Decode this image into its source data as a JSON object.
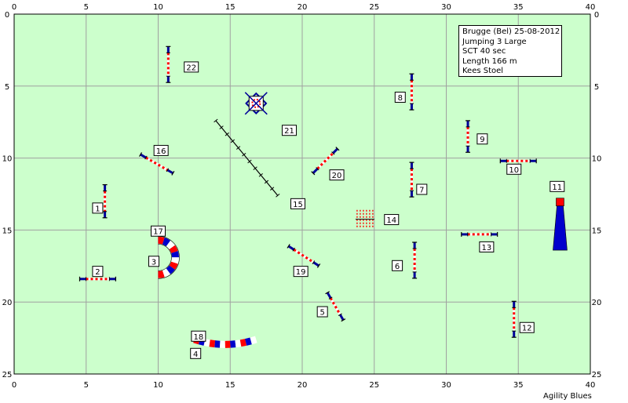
{
  "axes": {
    "x_ticks": [
      "0",
      "5",
      "10",
      "15",
      "20",
      "25",
      "30",
      "35",
      "40"
    ],
    "y_ticks": [
      "0",
      "5",
      "10",
      "15",
      "20",
      "25"
    ],
    "x_range": [
      0,
      40
    ],
    "y_range": [
      0,
      25
    ],
    "grid": true
  },
  "info": {
    "lines": [
      "Brugge (Bel) 25-08-2012",
      "Jumping 3 Large",
      "SCT 40 sec",
      "Length 166 m",
      "Kees Stoel"
    ]
  },
  "credit": "Agility Blues",
  "colors": {
    "field": "#ccffcc",
    "grid": "#a0a0a0",
    "pole_blue": "#000099",
    "accent_red": "#ff0000",
    "tunnel_blue": "#0000cc"
  },
  "labels": [
    {
      "text": "1",
      "x": 5.8,
      "y": 13.5
    },
    {
      "text": "2",
      "x": 5.8,
      "y": 17.9
    },
    {
      "text": "3",
      "x": 9.7,
      "y": 17.2
    },
    {
      "text": "4",
      "x": 12.6,
      "y": 23.6
    },
    {
      "text": "5",
      "x": 21.4,
      "y": 20.7
    },
    {
      "text": "6",
      "x": 26.6,
      "y": 17.5
    },
    {
      "text": "7",
      "x": 28.3,
      "y": 12.2
    },
    {
      "text": "8",
      "x": 26.8,
      "y": 5.8
    },
    {
      "text": "9",
      "x": 32.5,
      "y": 8.7
    },
    {
      "text": "10",
      "x": 34.7,
      "y": 10.8
    },
    {
      "text": "11",
      "x": 37.7,
      "y": 12.0
    },
    {
      "text": "12",
      "x": 35.6,
      "y": 21.8
    },
    {
      "text": "13",
      "x": 32.8,
      "y": 16.2
    },
    {
      "text": "14",
      "x": 26.2,
      "y": 14.3
    },
    {
      "text": "15",
      "x": 19.7,
      "y": 13.2
    },
    {
      "text": "16",
      "x": 10.2,
      "y": 9.5
    },
    {
      "text": "17",
      "x": 10.0,
      "y": 15.1
    },
    {
      "text": "18",
      "x": 12.8,
      "y": 22.4
    },
    {
      "text": "19",
      "x": 19.9,
      "y": 17.9
    },
    {
      "text": "20",
      "x": 22.4,
      "y": 11.2
    },
    {
      "text": "21",
      "x": 19.1,
      "y": 8.1
    },
    {
      "text": "22",
      "x": 12.3,
      "y": 3.7
    }
  ],
  "hurdles": [
    {
      "name": "1",
      "x": 6.3,
      "y": 13.0,
      "length": 2.3,
      "angle": 90
    },
    {
      "name": "2",
      "x": 5.8,
      "y": 18.4,
      "length": 2.5,
      "angle": 0
    },
    {
      "name": "5",
      "x": 22.3,
      "y": 20.3,
      "length": 2.2,
      "angle": 60
    },
    {
      "name": "6",
      "x": 27.8,
      "y": 17.1,
      "length": 2.5,
      "angle": 90
    },
    {
      "name": "7",
      "x": 27.6,
      "y": 11.5,
      "length": 2.4,
      "angle": 90
    },
    {
      "name": "8",
      "x": 27.6,
      "y": 5.4,
      "length": 2.5,
      "angle": 90
    },
    {
      "name": "9",
      "x": 31.5,
      "y": 8.5,
      "length": 2.2,
      "angle": 90
    },
    {
      "name": "10",
      "x": 35.0,
      "y": 10.2,
      "length": 2.5,
      "angle": 0
    },
    {
      "name": "12",
      "x": 34.7,
      "y": 21.2,
      "length": 2.5,
      "angle": 90
    },
    {
      "name": "13",
      "x": 32.3,
      "y": 15.3,
      "length": 2.5,
      "angle": 0
    },
    {
      "name": "16",
      "x": 9.9,
      "y": 10.4,
      "length": 2.6,
      "angle": 30
    },
    {
      "name": "19",
      "x": 20.1,
      "y": 16.8,
      "length": 2.5,
      "angle": 33
    },
    {
      "name": "20",
      "x": 21.6,
      "y": 10.2,
      "length": 2.4,
      "angle": -45
    },
    {
      "name": "22",
      "x": 10.7,
      "y": 3.5,
      "length": 2.5,
      "angle": 90
    }
  ],
  "dogwalk": {
    "from": [
      14.0,
      7.4
    ],
    "to": [
      18.3,
      12.6
    ]
  },
  "weave": {
    "x": 24.3,
    "y1": 13.6,
    "y2": 14.9,
    "poles": 6
  },
  "table": {
    "x": 16.8,
    "y": 6.2
  },
  "arc_tunnel": {
    "cx": 10.0,
    "cy": 16.9,
    "radius": 1.2
  },
  "flat_tunnel": {
    "x1": 12.5,
    "x2": 16.8,
    "y": 22.6,
    "sag": 0.35
  },
  "long_tunnel": {
    "x": 37.9,
    "y1": 13.0,
    "y2": 16.4
  }
}
